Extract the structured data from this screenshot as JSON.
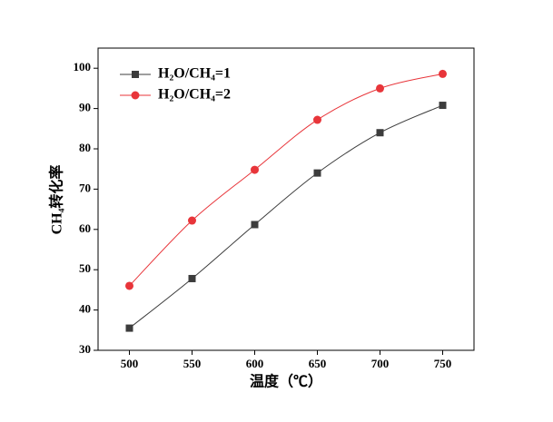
{
  "chart_data": {
    "type": "line",
    "x_label": "温度（℃）",
    "y_label": "CH₄转化率",
    "x": [
      500,
      550,
      600,
      650,
      700,
      750
    ],
    "series": [
      {
        "name": "H₂O/CH₄=1",
        "color": "#3c3c3c",
        "marker": "square",
        "values": [
          35.5,
          47.8,
          61.2,
          74,
          84,
          90.8
        ]
      },
      {
        "name": "H₂O/CH₄=2",
        "color": "#e8353a",
        "marker": "circle",
        "values": [
          46,
          62.2,
          74.8,
          87.2,
          95,
          98.6
        ]
      }
    ],
    "xlim": [
      475,
      775
    ],
    "xticks": [
      500,
      550,
      600,
      650,
      700,
      750
    ],
    "ylim": [
      30,
      105
    ],
    "yticks": [
      30,
      40,
      50,
      60,
      70,
      80,
      90,
      100
    ],
    "smooth": true,
    "legend": "upper-left"
  }
}
